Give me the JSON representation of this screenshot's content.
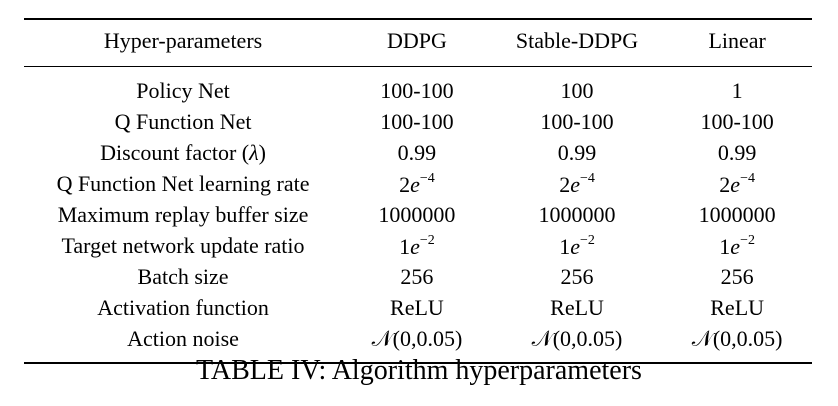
{
  "table": {
    "headers": [
      "Hyper-parameters",
      "DDPG",
      "Stable-DDPG",
      "Linear"
    ],
    "rows": [
      {
        "name": "Policy Net",
        "ddpg": "100-100",
        "stable": "100",
        "linear": "1"
      },
      {
        "name": "Q Function Net",
        "ddpg": "100-100",
        "stable": "100-100",
        "linear": "100-100"
      },
      {
        "name": "Discount factor (λ)",
        "ddpg": "0.99",
        "stable": "0.99",
        "linear": "0.99"
      },
      {
        "name": "Q Function Net learning rate",
        "ddpg": "2e−4",
        "stable": "2e−4",
        "linear": "2e−4"
      },
      {
        "name": "Maximum replay buffer size",
        "ddpg": "1000000",
        "stable": "1000000",
        "linear": "1000000"
      },
      {
        "name": "Target network update ratio",
        "ddpg": "1e−2",
        "stable": "1e−2",
        "linear": "1e−2"
      },
      {
        "name": "Batch size",
        "ddpg": "256",
        "stable": "256",
        "linear": "256"
      },
      {
        "name": "Activation function",
        "ddpg": "ReLU",
        "stable": "ReLU",
        "linear": "ReLU"
      },
      {
        "name": "Action noise",
        "ddpg": "𝒩(0,0.05)",
        "stable": "𝒩(0,0.05)",
        "linear": "𝒩(0,0.05)"
      }
    ]
  },
  "caption": "TABLE IV: Algorithm hyperparameters"
}
